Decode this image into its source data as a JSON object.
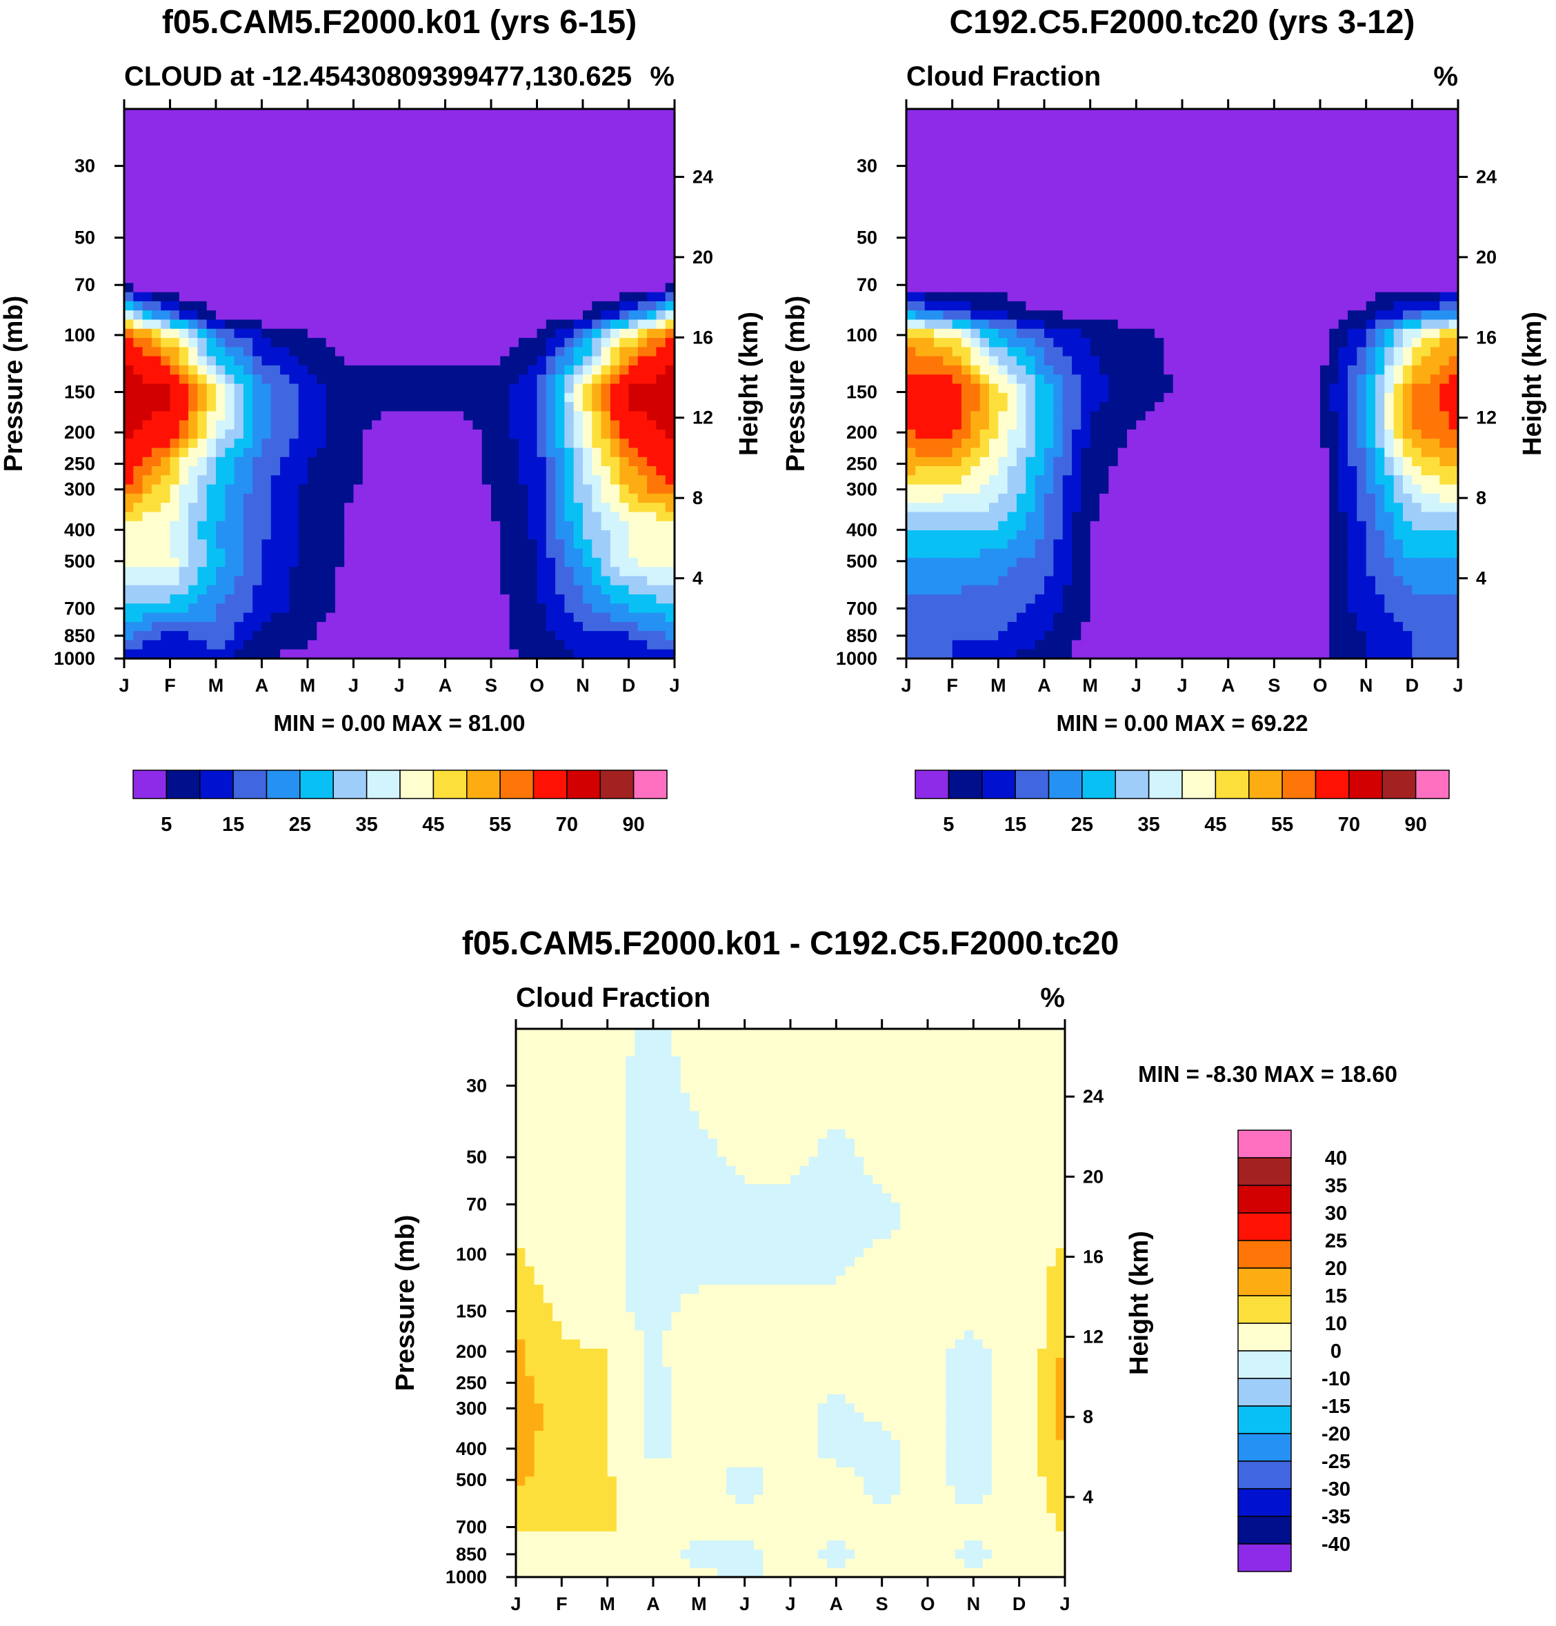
{
  "chart_data": [
    {
      "type": "heatmap",
      "panel": "top-left",
      "title": "f05.CAM5.F2000.k01 (yrs 6-15)",
      "subtitle_left": "CLOUD at -12.45430809399477,130.625",
      "subtitle_right": "%",
      "xlabel": "",
      "ylabel": "Pressure (mb)",
      "ylabel_right": "Height (km)",
      "x_ticks": [
        "J",
        "F",
        "M",
        "A",
        "M",
        "J",
        "J",
        "A",
        "S",
        "O",
        "N",
        "D",
        "J"
      ],
      "y_ticks": [
        30,
        50,
        70,
        100,
        150,
        200,
        250,
        300,
        400,
        500,
        700,
        850,
        1000
      ],
      "y_scale": "log",
      "ylim": [
        1000,
        20
      ],
      "y_right_ticks": [
        4,
        8,
        12,
        16,
        20,
        24
      ],
      "stats": "MIN =   0.00 MAX =  81.00",
      "colorbar": {
        "orientation": "horizontal",
        "labels": [
          "5",
          "15",
          "25",
          "35",
          "45",
          "55",
          "70",
          "90"
        ],
        "levels": [
          0,
          5,
          10,
          15,
          20,
          25,
          30,
          35,
          40,
          45,
          50,
          55,
          60,
          70,
          80,
          90
        ],
        "colors": [
          "#8d2be8",
          "#000f8c",
          "#0012d0",
          "#4167e0",
          "#2591f3",
          "#09c0f5",
          "#9fcdfa",
          "#d1f4fd",
          "#fffecf",
          "#fddf3b",
          "#fdad12",
          "#fe7607",
          "#ff1204",
          "#d20000",
          "#a42121",
          "#ff70c0"
        ]
      },
      "rows_pressure": [
        20,
        30,
        50,
        70,
        85,
        100,
        150,
        200,
        250,
        300,
        400,
        500,
        700,
        850,
        1000
      ],
      "values": [
        [
          0,
          0,
          0,
          0,
          0,
          0,
          0,
          0,
          0,
          0,
          0,
          0,
          0
        ],
        [
          0,
          0,
          0,
          0,
          0,
          0,
          0,
          0,
          0,
          0,
          0,
          0,
          0
        ],
        [
          0,
          0,
          0,
          0,
          0,
          0,
          0,
          0,
          0,
          0,
          0,
          0,
          0
        ],
        [
          3,
          0,
          0,
          0,
          0,
          0,
          0,
          0,
          0,
          0,
          0,
          0,
          3
        ],
        [
          35,
          15,
          3,
          0,
          0,
          0,
          0,
          0,
          0,
          0,
          3,
          15,
          35
        ],
        [
          60,
          45,
          20,
          10,
          5,
          2,
          2,
          2,
          2,
          5,
          20,
          45,
          60
        ],
        [
          78,
          72,
          45,
          22,
          13,
          7,
          7,
          7,
          7,
          15,
          45,
          72,
          78
        ],
        [
          72,
          65,
          40,
          22,
          13,
          6,
          2,
          2,
          6,
          15,
          40,
          65,
          72
        ],
        [
          65,
          50,
          30,
          18,
          10,
          6,
          2,
          2,
          6,
          12,
          35,
          55,
          65
        ],
        [
          60,
          45,
          28,
          17,
          9,
          5,
          2,
          2,
          5,
          12,
          33,
          50,
          60
        ],
        [
          40,
          40,
          25,
          16,
          8,
          4,
          2,
          2,
          4,
          11,
          30,
          40,
          40
        ],
        [
          43,
          42,
          27,
          15,
          8,
          4,
          1,
          1,
          4,
          10,
          25,
          40,
          43
        ],
        [
          28,
          28,
          20,
          13,
          7,
          3,
          1,
          1,
          3,
          9,
          18,
          25,
          28
        ],
        [
          22,
          12,
          20,
          8,
          6,
          1,
          1,
          1,
          3,
          8,
          13,
          15,
          22
        ],
        [
          10,
          10,
          10,
          5,
          3,
          1,
          1,
          1,
          3,
          6,
          10,
          10,
          10
        ]
      ]
    },
    {
      "type": "heatmap",
      "panel": "top-right",
      "title": "C192.C5.F2000.tc20 (yrs 3-12)",
      "subtitle_left": "Cloud Fraction",
      "subtitle_right": "%",
      "xlabel": "",
      "ylabel": "Pressure (mb)",
      "ylabel_right": "Height (km)",
      "x_ticks": [
        "J",
        "F",
        "M",
        "A",
        "M",
        "J",
        "J",
        "A",
        "S",
        "O",
        "N",
        "D",
        "J"
      ],
      "y_ticks": [
        30,
        50,
        70,
        100,
        150,
        200,
        250,
        300,
        400,
        500,
        700,
        850,
        1000
      ],
      "y_scale": "log",
      "ylim": [
        1000,
        20
      ],
      "y_right_ticks": [
        4,
        8,
        12,
        16,
        20,
        24
      ],
      "stats": "MIN =   0.00 MAX =  69.22",
      "colorbar": {
        "orientation": "horizontal",
        "labels": [
          "5",
          "15",
          "25",
          "35",
          "45",
          "55",
          "70",
          "90"
        ],
        "levels": [
          0,
          5,
          10,
          15,
          20,
          25,
          30,
          35,
          40,
          45,
          50,
          55,
          60,
          70,
          80,
          90
        ],
        "colors": [
          "#8d2be8",
          "#000f8c",
          "#0012d0",
          "#4167e0",
          "#2591f3",
          "#09c0f5",
          "#9fcdfa",
          "#d1f4fd",
          "#fffecf",
          "#fddf3b",
          "#fdad12",
          "#fe7607",
          "#ff1204",
          "#d20000",
          "#a42121",
          "#ff70c0"
        ]
      },
      "rows_pressure": [
        20,
        30,
        50,
        70,
        85,
        100,
        150,
        200,
        250,
        300,
        400,
        500,
        700,
        850,
        1000
      ],
      "values": [
        [
          0,
          0,
          0,
          0,
          0,
          0,
          0,
          0,
          0,
          0,
          0,
          0,
          0
        ],
        [
          0,
          0,
          0,
          0,
          0,
          0,
          0,
          0,
          0,
          0,
          0,
          0,
          0
        ],
        [
          0,
          0,
          0,
          0,
          0,
          0,
          0,
          0,
          0,
          0,
          0,
          0,
          0
        ],
        [
          3,
          3,
          3,
          0,
          0,
          0,
          0,
          0,
          0,
          0,
          3,
          3,
          3
        ],
        [
          22,
          15,
          9,
          5,
          3,
          2,
          1,
          1,
          0,
          1,
          6,
          15,
          22
        ],
        [
          52,
          45,
          25,
          15,
          9,
          6,
          4,
          2,
          0,
          2,
          15,
          40,
          52
        ],
        [
          65,
          65,
          48,
          28,
          12,
          8,
          4,
          2,
          0,
          4,
          25,
          55,
          65
        ],
        [
          60,
          62,
          45,
          28,
          9,
          4,
          2,
          1,
          0,
          3,
          25,
          55,
          60
        ],
        [
          52,
          52,
          40,
          25,
          7,
          3,
          1,
          1,
          0,
          3,
          20,
          45,
          52
        ],
        [
          45,
          42,
          38,
          22,
          6,
          3,
          1,
          1,
          0,
          3,
          18,
          38,
          45
        ],
        [
          30,
          30,
          30,
          20,
          5,
          2,
          1,
          1,
          0,
          3,
          16,
          30,
          30
        ],
        [
          25,
          25,
          22,
          18,
          5,
          2,
          1,
          1,
          0,
          3,
          15,
          25,
          25
        ],
        [
          17,
          17,
          17,
          13,
          5,
          2,
          1,
          1,
          0,
          3,
          13,
          17,
          17
        ],
        [
          15,
          15,
          15,
          10,
          3,
          2,
          1,
          1,
          2,
          4,
          10,
          15,
          15
        ],
        [
          15,
          15,
          10,
          8,
          3,
          2,
          1,
          1,
          3,
          4,
          10,
          15,
          15
        ]
      ]
    },
    {
      "type": "heatmap",
      "panel": "bottom",
      "title": "f05.CAM5.F2000.k01 - C192.C5.F2000.tc20",
      "subtitle_left": "Cloud Fraction",
      "subtitle_right": "%",
      "xlabel": "",
      "ylabel": "Pressure (mb)",
      "ylabel_right": "Height (km)",
      "x_ticks": [
        "J",
        "F",
        "M",
        "A",
        "M",
        "J",
        "J",
        "A",
        "S",
        "O",
        "N",
        "D",
        "J"
      ],
      "y_ticks": [
        30,
        50,
        70,
        100,
        150,
        200,
        250,
        300,
        400,
        500,
        700,
        850,
        1000
      ],
      "y_scale": "log",
      "ylim": [
        1000,
        20
      ],
      "y_right_ticks": [
        4,
        8,
        12,
        16,
        20,
        24
      ],
      "stats": "MIN =  -8.30 MAX =  18.60",
      "colorbar": {
        "orientation": "vertical",
        "labels": [
          "40",
          "35",
          "30",
          "25",
          "20",
          "15",
          "10",
          "0",
          "-10",
          "-15",
          "-20",
          "-25",
          "-30",
          "-35",
          "-40"
        ],
        "levels": [
          -50,
          -40,
          -35,
          -30,
          -25,
          -20,
          -15,
          -10,
          0,
          10,
          15,
          20,
          25,
          30,
          35,
          40
        ],
        "colors": [
          "#8d2be8",
          "#000f8c",
          "#0012d0",
          "#4167e0",
          "#2591f3",
          "#09c0f5",
          "#9fcdfa",
          "#d1f4fd",
          "#fffecf",
          "#fddf3b",
          "#fdad12",
          "#fe7607",
          "#ff1204",
          "#d20000",
          "#a42121",
          "#ff70c0"
        ]
      },
      "rows_pressure": [
        20,
        30,
        50,
        70,
        85,
        100,
        150,
        200,
        250,
        300,
        400,
        500,
        700,
        850,
        1000
      ],
      "values": [
        [
          2,
          2,
          2,
          -1,
          2,
          2,
          2,
          2,
          2,
          2,
          2,
          2,
          2
        ],
        [
          2,
          2,
          2,
          -3,
          2,
          2,
          2,
          2,
          2,
          2,
          2,
          2,
          2
        ],
        [
          2,
          2,
          2,
          -4,
          -2,
          2,
          2,
          -2,
          2,
          2,
          2,
          2,
          2
        ],
        [
          2,
          2,
          2,
          -4,
          -3,
          -2,
          -2,
          -3,
          -1,
          2,
          2,
          2,
          2
        ],
        [
          3,
          2,
          2,
          -4,
          -3,
          -2,
          -2,
          -3,
          -1,
          2,
          2,
          2,
          3
        ],
        [
          12,
          4,
          2,
          -3,
          -4,
          -3,
          -2,
          -2,
          2,
          2,
          2,
          4,
          12
        ],
        [
          14,
          9,
          3,
          -3,
          3,
          2,
          2,
          2,
          2,
          2,
          2,
          4,
          14
        ],
        [
          16,
          11,
          10,
          -3,
          11,
          2,
          2,
          2,
          2,
          2,
          -2,
          4,
          16
        ],
        [
          17,
          11,
          11,
          -3,
          3,
          2,
          2,
          2,
          2,
          2,
          -3,
          4,
          17
        ],
        [
          18,
          13,
          11,
          -2,
          2,
          2,
          2,
          -2,
          2,
          2,
          -3,
          4,
          18
        ],
        [
          16,
          13,
          11,
          -2,
          2,
          2,
          2,
          -2,
          -2,
          2,
          -3,
          4,
          16
        ],
        [
          16,
          13,
          11,
          2,
          2,
          -2,
          2,
          2,
          -2,
          2,
          -3,
          4,
          16
        ],
        [
          11,
          11,
          11,
          2,
          2,
          2,
          2,
          2,
          2,
          2,
          2,
          4,
          11
        ],
        [
          2,
          2,
          2,
          2,
          -2,
          -2,
          2,
          -2,
          2,
          2,
          -2,
          2,
          2
        ],
        [
          2,
          2,
          2,
          2,
          2,
          -2,
          2,
          2,
          2,
          2,
          2,
          2,
          2
        ]
      ]
    }
  ]
}
